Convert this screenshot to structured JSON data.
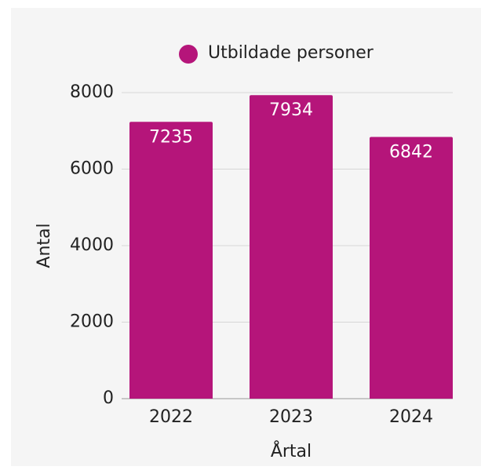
{
  "chart_data": {
    "type": "bar",
    "categories": [
      "2022",
      "2023",
      "2024"
    ],
    "series": [
      {
        "name": "Utbildade personer",
        "color": "#b5157a",
        "values": [
          7235,
          7934,
          6842
        ]
      }
    ],
    "xlabel": "Årtal",
    "ylabel": "Antal",
    "ylim": [
      0,
      8000
    ],
    "yticks": [
      0,
      2000,
      4000,
      6000,
      8000
    ],
    "grid": true
  }
}
